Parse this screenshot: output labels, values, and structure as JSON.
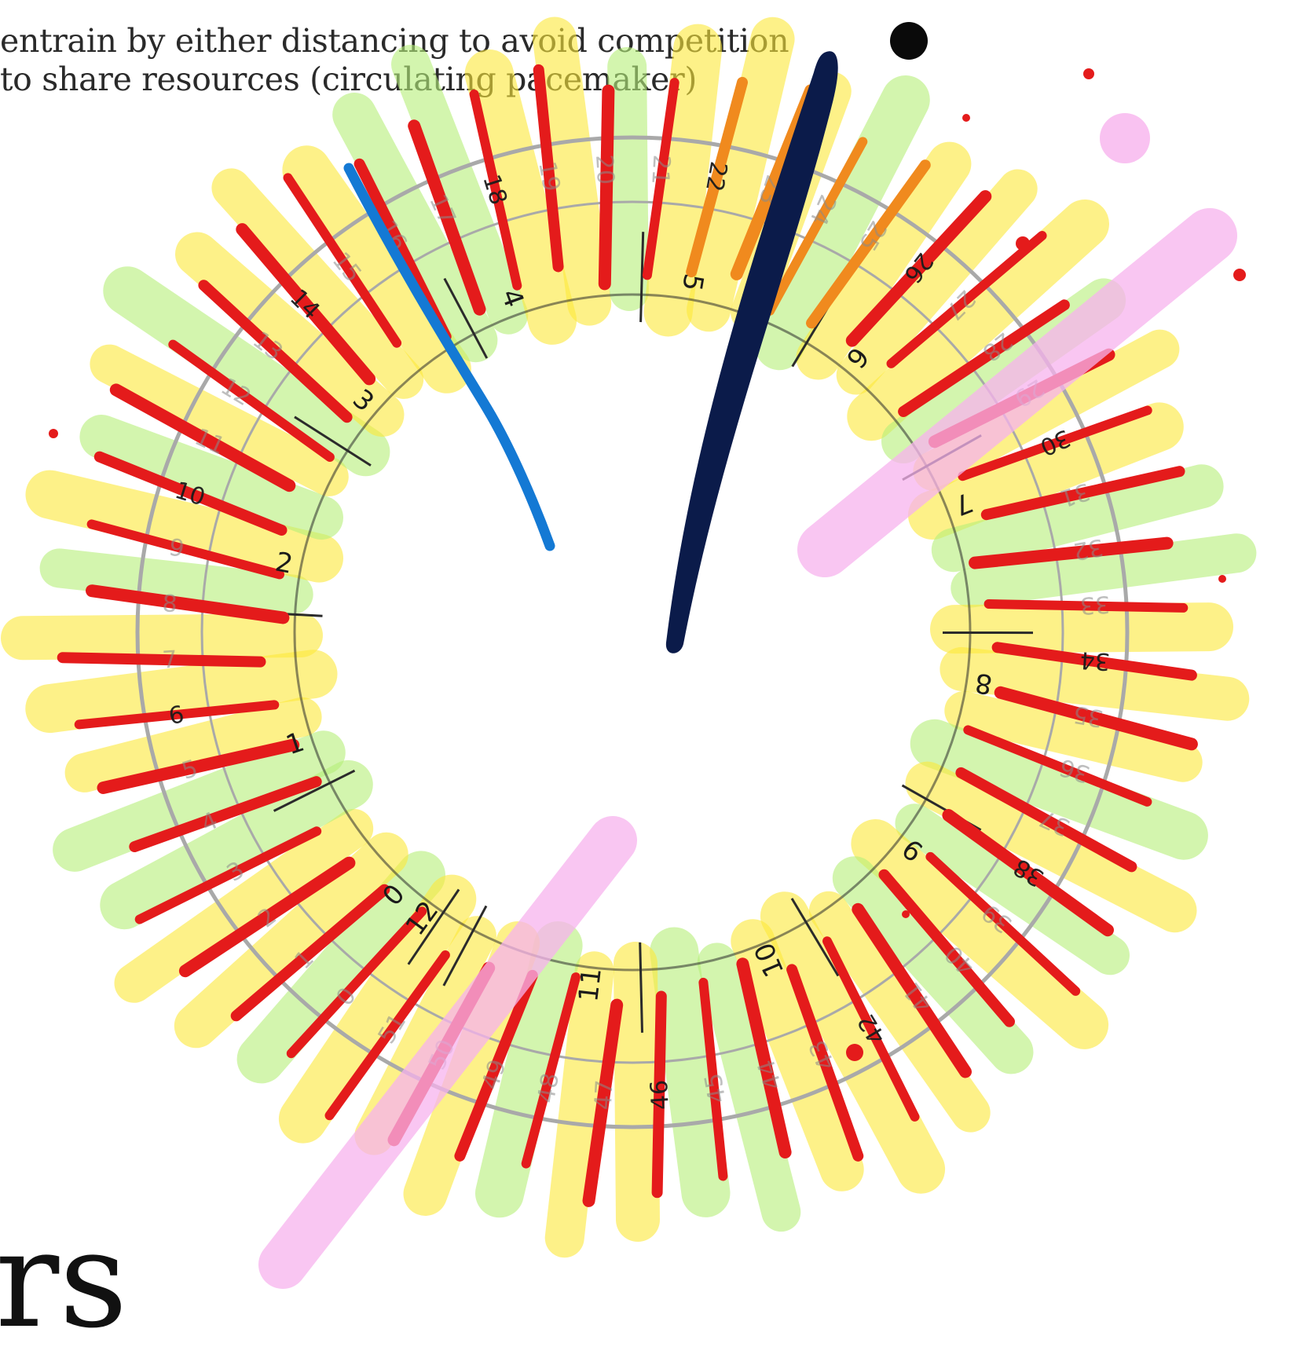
{
  "caption": {
    "line1": "entrain by either distancing to avoid competition",
    "line2": "to share resources (circulating pacemaker)"
  },
  "corner_word": "rs",
  "ring": {
    "week_labels": [
      "0",
      "1",
      "2",
      "3",
      "4",
      "5",
      "6",
      "7",
      "8",
      "9",
      "10",
      "11",
      "12",
      "13",
      "14",
      "15",
      "16",
      "17",
      "18",
      "19",
      "20",
      "21",
      "22",
      "23",
      "24",
      "25",
      "26",
      "27",
      "28",
      "29",
      "30",
      "31",
      "32",
      "33",
      "34",
      "35",
      "36",
      "37",
      "38",
      "39",
      "40",
      "41",
      "42",
      "43",
      "44",
      "45",
      "46",
      "47",
      "48",
      "49",
      "50",
      "51"
    ],
    "month_labels": [
      "0",
      "1",
      "2",
      "3",
      "4",
      "5",
      "6",
      "7",
      "8",
      "9",
      "10",
      "11",
      "12"
    ]
  },
  "colors": {
    "highlight_yellow": "#fde93a",
    "highlight_green": "#b6f07a",
    "stroke_red": "#e41b1b",
    "stroke_orange": "#f08a1e",
    "stroke_blue": "#1479d4",
    "stroke_navy": "#0b1b4a",
    "highlight_pink": "#f7b3ee",
    "ring_gray": "#a9a9a9",
    "ring_dark": "#2b2b2b"
  }
}
